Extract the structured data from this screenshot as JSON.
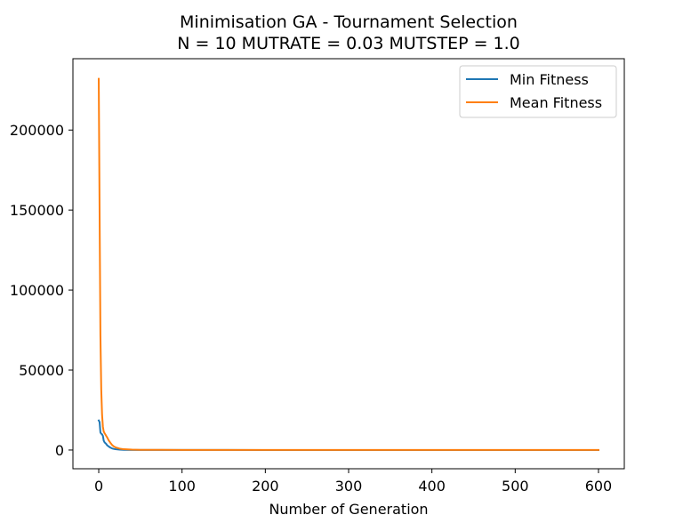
{
  "chart_data": {
    "type": "line",
    "title": "Minimisation GA - Tournament Selection",
    "subtitle": "N = 10 MUTRATE = 0.03 MUTSTEP = 1.0",
    "xlabel": "Number of Generation",
    "ylabel": "",
    "xlim": [
      -31,
      631
    ],
    "ylim": [
      -11700,
      244600
    ],
    "x_ticks": [
      0,
      100,
      200,
      300,
      400,
      500,
      600
    ],
    "y_ticks": [
      0,
      50000,
      100000,
      150000,
      200000
    ],
    "grid": false,
    "legend_position": "top-right",
    "series": [
      {
        "name": "Min Fitness",
        "color": "#1f77b4",
        "x": [
          0,
          1,
          2,
          3,
          4,
          5,
          6,
          7,
          8,
          9,
          10,
          12,
          14,
          16,
          18,
          20,
          25,
          30,
          40,
          50,
          75,
          100,
          200,
          300,
          400,
          500,
          600
        ],
        "y": [
          18500,
          17500,
          11000,
          10200,
          9800,
          8800,
          5800,
          4800,
          4300,
          3800,
          3000,
          2200,
          1500,
          1000,
          700,
          500,
          250,
          120,
          50,
          30,
          20,
          15,
          10,
          10,
          10,
          10,
          10
        ]
      },
      {
        "name": "Mean Fitness",
        "color": "#ff7f0e",
        "x": [
          0,
          1,
          2,
          3,
          4,
          5,
          6,
          7,
          8,
          9,
          10,
          12,
          14,
          16,
          18,
          20,
          25,
          30,
          40,
          50,
          75,
          100,
          200,
          300,
          400,
          500,
          600
        ],
        "y": [
          232000,
          150000,
          72000,
          38000,
          22000,
          14500,
          11500,
          10500,
          9700,
          8800,
          8000,
          6000,
          4500,
          3200,
          2300,
          1700,
          900,
          500,
          250,
          150,
          80,
          50,
          30,
          25,
          25,
          25,
          25
        ]
      }
    ]
  }
}
